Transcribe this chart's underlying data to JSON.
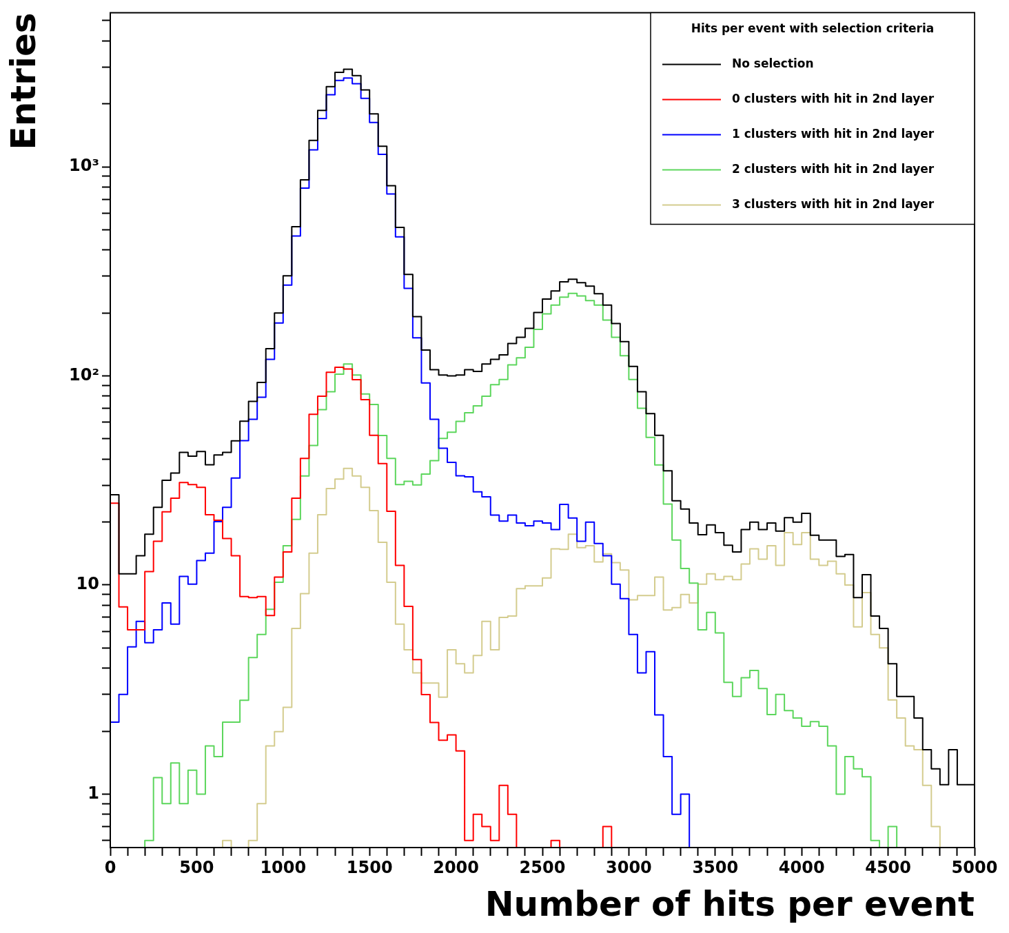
{
  "chart_data": {
    "type": "histogram",
    "xlabel": "Number of hits per event",
    "ylabel": "Entries",
    "legend_title": "Hits per event with selection criteria",
    "legend": "top right",
    "log": true,
    "bins": [
      0,
      50,
      100,
      150,
      200,
      250,
      300,
      350,
      400,
      450,
      500,
      550,
      600,
      650,
      700,
      750,
      800,
      850,
      900,
      950,
      1000,
      1050,
      1100,
      1150,
      1200,
      1250,
      1300,
      1350,
      1400,
      1450,
      1500,
      1550,
      1600,
      1650,
      1700,
      1750,
      1800,
      1850,
      1900,
      1950,
      2000,
      2050,
      2100,
      2150,
      2200,
      2250,
      2300,
      2350,
      2400,
      2450,
      2500,
      2550,
      2600,
      2650,
      2700,
      2750,
      2800,
      2850,
      2900,
      2950,
      3000,
      3050,
      3100,
      3150,
      3200,
      3250,
      3300,
      3350,
      3400,
      3450,
      3500,
      3550,
      3600,
      3650,
      3700,
      3750,
      3800,
      3850,
      3900,
      3950,
      4000,
      4050,
      4100,
      4150,
      4200,
      4250,
      4300,
      4350,
      4400,
      4450,
      4500,
      4550,
      4600,
      4650,
      4700,
      4750,
      4800,
      4850,
      4900,
      4950,
      5000
    ],
    "xlim": [
      0,
      5000
    ],
    "xticks": [
      0,
      {
        "value": 100,
        "label": null
      },
      {
        "value": 200,
        "label": null
      },
      {
        "value": 300,
        "label": null
      },
      {
        "value": 400,
        "label": null
      },
      500,
      {
        "value": 600,
        "label": null
      },
      {
        "value": 700,
        "label": null
      },
      {
        "value": 800,
        "label": null
      },
      {
        "value": 900,
        "label": null
      },
      1000,
      {
        "value": 1100,
        "label": null
      },
      {
        "value": 1200,
        "label": null
      },
      {
        "value": 1300,
        "label": null
      },
      {
        "value": 1400,
        "label": null
      },
      1500,
      {
        "value": 1600,
        "label": null
      },
      {
        "value": 1700,
        "label": null
      },
      {
        "value": 1800,
        "label": null
      },
      {
        "value": 1900,
        "label": null
      },
      2000,
      {
        "value": 2100,
        "label": null
      },
      {
        "value": 2200,
        "label": null
      },
      {
        "value": 2300,
        "label": null
      },
      {
        "value": 2400,
        "label": null
      },
      2500,
      {
        "value": 2600,
        "label": null
      },
      {
        "value": 2700,
        "label": null
      },
      {
        "value": 2800,
        "label": null
      },
      {
        "value": 2900,
        "label": null
      },
      3000,
      {
        "value": 3100,
        "label": null
      },
      {
        "value": 3200,
        "label": null
      },
      {
        "value": 3300,
        "label": null
      },
      {
        "value": 3400,
        "label": null
      },
      3500,
      {
        "value": 3600,
        "label": null
      },
      {
        "value": 3700,
        "label": null
      },
      {
        "value": 3800,
        "label": null
      },
      {
        "value": 3900,
        "label": null
      },
      4000,
      {
        "value": 4100,
        "label": null
      },
      {
        "value": 4200,
        "label": null
      },
      {
        "value": 4300,
        "label": null
      },
      {
        "value": 4400,
        "label": null
      },
      4500,
      {
        "value": 4600,
        "label": null
      },
      {
        "value": 4700,
        "label": null
      },
      {
        "value": 4800,
        "label": null
      },
      {
        "value": 4900,
        "label": null
      },
      5000
    ],
    "ylim": [
      0.555,
      5460
    ],
    "yticks": [
      {
        "value": 0.6,
        "label": null
      },
      {
        "value": 0.7,
        "label": null
      },
      {
        "value": 0.8,
        "label": null
      },
      {
        "value": 0.9,
        "label": null
      },
      1,
      {
        "value": 2,
        "label": null
      },
      {
        "value": 3,
        "label": null
      },
      {
        "value": 4,
        "label": null
      },
      {
        "value": 5,
        "label": null
      },
      {
        "value": 6,
        "label": null
      },
      {
        "value": 7,
        "label": null
      },
      {
        "value": 8,
        "label": null
      },
      {
        "value": 9,
        "label": null
      },
      10,
      {
        "value": 20,
        "label": null
      },
      {
        "value": 30,
        "label": null
      },
      {
        "value": 40,
        "label": null
      },
      {
        "value": 50,
        "label": null
      },
      {
        "value": 60,
        "label": null
      },
      {
        "value": 70,
        "label": null
      },
      {
        "value": 80,
        "label": null
      },
      {
        "value": 90,
        "label": null
      },
      {
        "value": 100,
        "label": "10²"
      },
      {
        "value": 200,
        "label": null
      },
      {
        "value": 300,
        "label": null
      },
      {
        "value": 400,
        "label": null
      },
      {
        "value": 500,
        "label": null
      },
      {
        "value": 600,
        "label": null
      },
      {
        "value": 700,
        "label": null
      },
      {
        "value": 800,
        "label": null
      },
      {
        "value": 900,
        "label": null
      },
      {
        "value": 1000,
        "label": "10³"
      },
      {
        "value": 2000,
        "label": null
      },
      {
        "value": 3000,
        "label": null
      },
      {
        "value": 4000,
        "label": null
      },
      {
        "value": 5000,
        "label": null
      }
    ],
    "series": [
      {
        "name": "No selection",
        "color": "#000000",
        "values": [
          27,
          11.3,
          11.3,
          13.8,
          17.5,
          23.5,
          31.7,
          34.3,
          43.1,
          41.3,
          43.5,
          37.6,
          41.9,
          43.1,
          48.9,
          60.7,
          75.5,
          93,
          135,
          200,
          301,
          517,
          867,
          1337,
          1862,
          2420,
          2831,
          2929,
          2731,
          2333,
          1790,
          1253,
          813,
          513,
          306,
          192,
          133,
          107,
          101,
          100,
          101,
          107,
          105,
          114,
          120,
          126,
          143,
          153,
          169,
          201,
          233,
          255,
          282,
          290,
          279,
          269,
          247,
          218,
          178,
          146,
          111,
          84,
          66,
          52,
          35.2,
          25.3,
          23.1,
          19.8,
          17.4,
          19.4,
          17.8,
          15.5,
          14.4,
          18.4,
          20,
          18.4,
          19.8,
          18.1,
          21,
          20,
          22,
          17.3,
          16.4,
          16.4,
          13.7,
          14,
          8.7,
          11.2,
          7.1,
          6.2,
          4.2,
          2.93,
          2.93,
          2.31,
          1.63,
          1.32,
          1.11,
          1.63,
          1.11,
          1.11
        ]
      },
      {
        "name": "0 clusters with hit in 2nd layer",
        "color": "#ff0000",
        "values": [
          24.6,
          7.85,
          6.1,
          6.1,
          11.6,
          16.2,
          22.4,
          26,
          30.9,
          30.2,
          29.3,
          21.7,
          20.4,
          16.7,
          13.8,
          8.8,
          8.7,
          8.8,
          7.15,
          10.9,
          14.4,
          26,
          40.3,
          65.5,
          80,
          104,
          110,
          108,
          96,
          77,
          52,
          38.1,
          22.5,
          12.4,
          7.9,
          4.4,
          2.99,
          2.2,
          1.81,
          1.92,
          1.61,
          0.6,
          0.8,
          0.7,
          0.6,
          1.1,
          0.8,
          null,
          null,
          null,
          null,
          0.6,
          null,
          null,
          null,
          null,
          null,
          0.7,
          null,
          null,
          null,
          null,
          null,
          null,
          null,
          null,
          null,
          null,
          null,
          null,
          null,
          null,
          null,
          null,
          null,
          null,
          null,
          null,
          null,
          null,
          null,
          null,
          null,
          null,
          null,
          null,
          null,
          null,
          null,
          null,
          null,
          null,
          null,
          null,
          null,
          null,
          null,
          null,
          null,
          null
        ]
      },
      {
        "name": "1 clusters with hit in 2nd layer",
        "color": "#0000ff",
        "values": [
          2.21,
          3,
          5.06,
          6.7,
          5.3,
          6.1,
          8.2,
          6.5,
          11,
          10.1,
          13.1,
          14.2,
          20.1,
          23.5,
          32.5,
          49,
          62,
          79,
          120,
          179,
          272,
          467,
          791,
          1205,
          1702,
          2213,
          2588,
          2657,
          2497,
          2124,
          1630,
          1147,
          741,
          462,
          262,
          152,
          92.5,
          62,
          45.1,
          38.6,
          33.3,
          32.9,
          27.9,
          26.4,
          21.6,
          20.2,
          21.6,
          19.8,
          19.2,
          20.2,
          19.8,
          18.4,
          24.3,
          20.9,
          16.2,
          20,
          15.8,
          13.8,
          10.1,
          8.6,
          5.8,
          3.8,
          4.8,
          2.39,
          1.51,
          0.8,
          1,
          null,
          null,
          null,
          null,
          null,
          null,
          null,
          null,
          null,
          null,
          null,
          null,
          null,
          null,
          null,
          null,
          null,
          null,
          null,
          null,
          null,
          null,
          null,
          null,
          null,
          null,
          null,
          null,
          null,
          null,
          null,
          null,
          null
        ]
      },
      {
        "name": "2 clusters with hit in 2nd layer",
        "color": "#5cd65c",
        "values": [
          null,
          null,
          null,
          null,
          0.6,
          1.2,
          0.9,
          1.41,
          0.9,
          1.3,
          1,
          1.7,
          1.51,
          2.21,
          2.21,
          2.81,
          4.5,
          5.8,
          7.65,
          10.3,
          15.4,
          20.6,
          33.2,
          46.5,
          69,
          84,
          102,
          114,
          101,
          82,
          73,
          51.9,
          40.3,
          30.2,
          31.3,
          30.1,
          33.9,
          39.3,
          50.2,
          53.8,
          60.6,
          66.6,
          71.9,
          80,
          90.8,
          96.1,
          113,
          122,
          137,
          167,
          198,
          218,
          238,
          248,
          241,
          229,
          218,
          185,
          153,
          125,
          96.1,
          70,
          50.8,
          37.5,
          24.4,
          16.4,
          12,
          10.2,
          6.1,
          7.4,
          5.9,
          3.42,
          2.93,
          3.6,
          3.9,
          3.2,
          2.4,
          3,
          2.51,
          2.31,
          2.11,
          2.22,
          2.11,
          1.7,
          1,
          1.51,
          1.32,
          1.21,
          0.6,
          null,
          0.7,
          null,
          null,
          null,
          null,
          null,
          null,
          null,
          null,
          null
        ]
      },
      {
        "name": "3 clusters with hit in 2nd layer",
        "color": "#d4cc8e",
        "values": [
          null,
          null,
          null,
          null,
          null,
          null,
          null,
          null,
          null,
          null,
          null,
          null,
          null,
          0.6,
          null,
          null,
          0.6,
          0.9,
          1.7,
          1.99,
          2.6,
          6.2,
          9.1,
          14.2,
          21.7,
          28.9,
          32.1,
          36.1,
          33.2,
          29.3,
          22.7,
          16,
          10.3,
          6.5,
          4.9,
          3.8,
          3.4,
          3.4,
          2.91,
          4.9,
          4.2,
          3.8,
          4.6,
          6.7,
          4.9,
          7,
          7.1,
          9.6,
          9.9,
          9.9,
          10.8,
          14.9,
          14.8,
          17.5,
          15.1,
          15.4,
          12.9,
          14.1,
          12.8,
          11.8,
          8.5,
          8.9,
          8.9,
          10.9,
          7.6,
          7.8,
          9,
          8.2,
          10.1,
          11.3,
          10.6,
          11,
          10.6,
          12.6,
          14.9,
          13.3,
          15.4,
          12.4,
          17.8,
          15.6,
          17.8,
          13.3,
          12.4,
          13,
          11.3,
          10,
          6.3,
          9.2,
          5.8,
          5,
          2.82,
          2.31,
          1.7,
          1.63,
          1.1,
          0.7,
          null,
          null,
          null,
          null
        ]
      }
    ]
  }
}
